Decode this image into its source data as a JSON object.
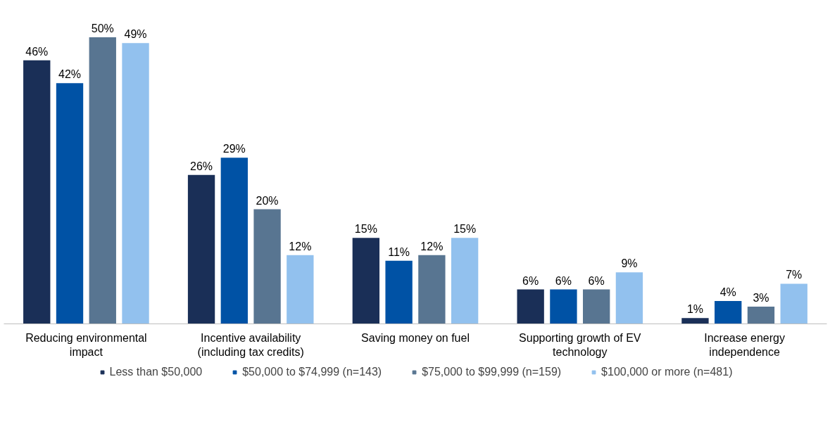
{
  "chart_data": {
    "type": "bar",
    "categories": [
      "Reducing environmental impact",
      "Incentive availability (including tax credits)",
      "Saving money on fuel",
      "Supporting growth of EV technology",
      "Increase energy independence"
    ],
    "series": [
      {
        "name": "Less than $50,000",
        "color": "#1a2f57",
        "values": [
          46,
          26,
          15,
          6,
          1
        ],
        "value_labels": [
          "46%",
          "26%",
          "15%",
          "6%",
          "1%"
        ]
      },
      {
        "name": "$50,000 to $74,999 (n=143)",
        "color": "#0052a5",
        "values": [
          42,
          29,
          11,
          6,
          4
        ],
        "value_labels": [
          "42%",
          "29%",
          "11%",
          "6%",
          "4%"
        ]
      },
      {
        "name": "$75,000 to $99,999 (n=159)",
        "color": "#587591",
        "values": [
          50,
          20,
          12,
          6,
          3
        ],
        "value_labels": [
          "50%",
          "20%",
          "12%",
          "6%",
          "3%"
        ]
      },
      {
        "name": "$100,000 or more (n=481)",
        "color": "#92c1ee",
        "values": [
          49,
          12,
          15,
          9,
          7
        ],
        "value_labels": [
          "49%",
          "12%",
          "15%",
          "9%",
          "7%"
        ]
      }
    ],
    "legend": "bottom",
    "grid": false
  }
}
